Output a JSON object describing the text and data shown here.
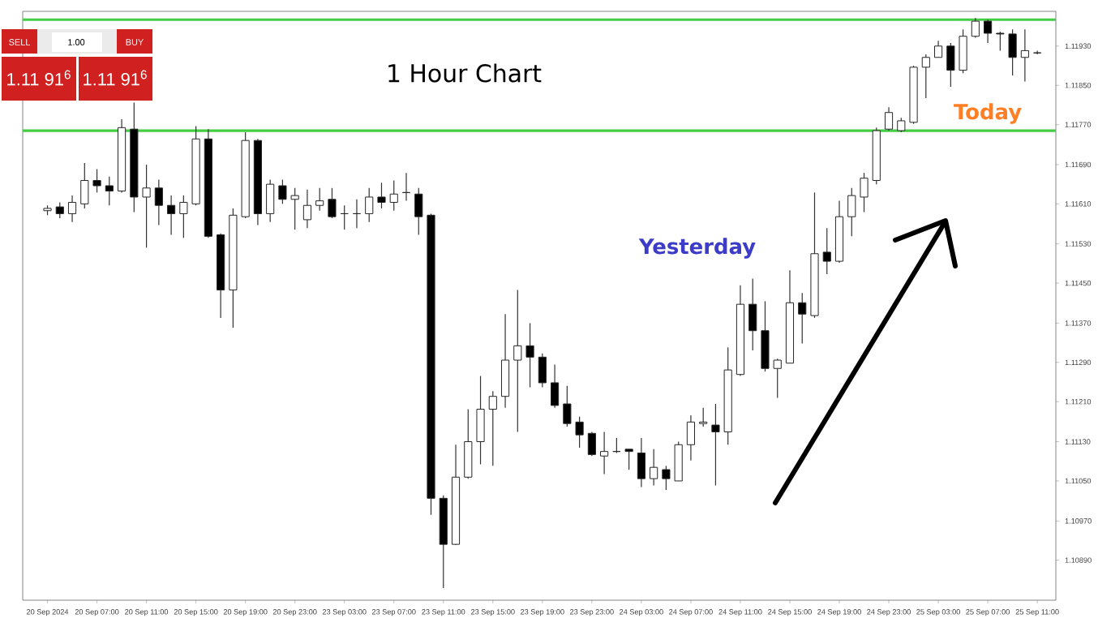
{
  "chart_data": {
    "type": "candlestick",
    "title": "1 Hour Chart",
    "annotations": [
      "Yesterday",
      "Today",
      "SELL",
      "1.00",
      "BUY",
      "1.11 91$^{6}$",
      "1.11 91$^{6}$"
    ],
    "categories": [
      "20 Sep 2024",
      null,
      null,
      null,
      "20 Sep 07:00",
      null,
      null,
      null,
      "20 Sep 11:00",
      null,
      null,
      null,
      "20 Sep 15:00",
      null,
      null,
      null,
      "20 Sep 19:00",
      null,
      null,
      null,
      "20 Sep 23:00",
      null,
      null,
      null,
      "23 Sep 03:00",
      null,
      null,
      null,
      "23 Sep 07:00",
      null,
      null,
      null,
      "23 Sep 11:00",
      null,
      null,
      null,
      "23 Sep 15:00",
      null,
      null,
      null,
      "23 Sep 19:00",
      null,
      null,
      null,
      "23 Sep 23:00",
      null,
      null,
      null,
      "24 Sep 03:00",
      null,
      null,
      null,
      "24 Sep 07:00",
      null,
      null,
      null,
      "24 Sep 11:00",
      null,
      null,
      null,
      "24 Sep 15:00",
      null,
      null,
      null,
      "24 Sep 19:00",
      null,
      null,
      null,
      "24 Sep 23:00",
      null,
      null,
      null,
      "25 Sep 03:00",
      null,
      null,
      null,
      "25 Sep 07:00",
      null,
      null,
      null,
      "25 Sep 11:00"
    ],
    "ohlc": [
      [
        1.11597,
        1.11607,
        1.11588,
        1.11601
      ],
      [
        1.11604,
        1.11614,
        1.11581,
        1.11591
      ],
      [
        1.11591,
        1.11627,
        1.11574,
        1.11614
      ],
      [
        1.11611,
        1.11693,
        1.11601,
        1.11657
      ],
      [
        1.11657,
        1.1168,
        1.11634,
        1.11647
      ],
      [
        1.11647,
        1.11666,
        1.11607,
        1.11637
      ],
      [
        1.11637,
        1.11782,
        1.11634,
        1.11765
      ],
      [
        1.11762,
        1.11815,
        1.11594,
        1.11624
      ],
      [
        1.11624,
        1.11689,
        1.11522,
        1.11643
      ],
      [
        1.11643,
        1.1166,
        1.11568,
        1.11607
      ],
      [
        1.11607,
        1.11627,
        1.11548,
        1.11591
      ],
      [
        1.11591,
        1.11627,
        1.11541,
        1.11614
      ],
      [
        1.11611,
        1.11768,
        1.11607,
        1.11742
      ],
      [
        1.11742,
        1.11762,
        1.11541,
        1.11545
      ],
      [
        1.11548,
        1.11551,
        1.1138,
        1.11436
      ],
      [
        1.11436,
        1.11601,
        1.1136,
        1.11588
      ],
      [
        1.11584,
        1.11755,
        1.11581,
        1.11739
      ],
      [
        1.11739,
        1.11742,
        1.11568,
        1.11591
      ],
      [
        1.11591,
        1.1166,
        1.11574,
        1.1165
      ],
      [
        1.11647,
        1.1166,
        1.11611,
        1.1162
      ],
      [
        1.1162,
        1.11643,
        1.11558,
        1.11627
      ],
      [
        1.11578,
        1.1164,
        1.11561,
        1.11607
      ],
      [
        1.11607,
        1.11643,
        1.11597,
        1.11617
      ],
      [
        1.1162,
        1.11643,
        1.11581,
        1.11584
      ],
      [
        1.11591,
        1.11607,
        1.11558,
        1.11591
      ],
      [
        1.11591,
        1.1162,
        1.11561,
        1.11591
      ],
      [
        1.11591,
        1.11643,
        1.11574,
        1.11624
      ],
      [
        1.11624,
        1.11653,
        1.11601,
        1.11614
      ],
      [
        1.11614,
        1.11657,
        1.11597,
        1.1163
      ],
      [
        1.11634,
        1.11673,
        1.11617,
        1.11634
      ],
      [
        1.1163,
        1.11643,
        1.11548,
        1.11584
      ],
      [
        1.11588,
        1.11591,
        1.10982,
        1.11015
      ],
      [
        1.11015,
        1.11022,
        1.10834,
        1.10923
      ],
      [
        1.10923,
        1.11124,
        1.1092,
        1.11058
      ],
      [
        1.11058,
        1.11196,
        1.11055,
        1.1113
      ],
      [
        1.1113,
        1.11262,
        1.11084,
        1.11196
      ],
      [
        1.11196,
        1.11232,
        1.11081,
        1.11222
      ],
      [
        1.11222,
        1.11387,
        1.11199,
        1.11295
      ],
      [
        1.11295,
        1.11436,
        1.1115,
        1.11324
      ],
      [
        1.11324,
        1.1137,
        1.11239,
        1.11301
      ],
      [
        1.11301,
        1.11308,
        1.11239,
        1.11249
      ],
      [
        1.11249,
        1.11285,
        1.11199,
        1.11203
      ],
      [
        1.11206,
        1.11242,
        1.1116,
        1.11166
      ],
      [
        1.1117,
        1.1118,
        1.11117,
        1.11143
      ],
      [
        1.11147,
        1.1115,
        1.11101,
        1.11104
      ],
      [
        1.11101,
        1.1115,
        1.11064,
        1.1111
      ],
      [
        1.1111,
        1.11137,
        1.11107,
        1.1111
      ],
      [
        1.11114,
        1.11114,
        1.11074,
        1.1111
      ],
      [
        1.11107,
        1.11137,
        1.11038,
        1.11055
      ],
      [
        1.11055,
        1.11114,
        1.11041,
        1.11078
      ],
      [
        1.11074,
        1.11081,
        1.11032,
        1.11055
      ],
      [
        1.11051,
        1.1113,
        1.11051,
        1.11124
      ],
      [
        1.11124,
        1.11183,
        1.11091,
        1.1117
      ],
      [
        1.11166,
        1.11199,
        1.1116,
        1.1117
      ],
      [
        1.11163,
        1.11206,
        1.11041,
        1.1115
      ],
      [
        1.1115,
        1.11321,
        1.11124,
        1.11275
      ],
      [
        1.11265,
        1.11446,
        1.11262,
        1.11407
      ],
      [
        1.11407,
        1.11459,
        1.11314,
        1.11354
      ],
      [
        1.11354,
        1.11413,
        1.11272,
        1.11278
      ],
      [
        1.11278,
        1.11298,
        1.11219,
        1.11295
      ],
      [
        1.11288,
        1.11476,
        1.11288,
        1.1141
      ],
      [
        1.1141,
        1.1143,
        1.11328,
        1.11387
      ],
      [
        1.11384,
        1.11634,
        1.1138,
        1.11509
      ],
      [
        1.11512,
        1.11561,
        1.11469,
        1.11495
      ],
      [
        1.11495,
        1.11617,
        1.11492,
        1.11584
      ],
      [
        1.11584,
        1.11643,
        1.11545,
        1.11627
      ],
      [
        1.11624,
        1.11673,
        1.11594,
        1.11663
      ],
      [
        1.11657,
        1.11765,
        1.1165,
        1.11759
      ],
      [
        1.11762,
        1.11805,
        1.11759,
        1.11795
      ],
      [
        1.11759,
        1.11785,
        1.11755,
        1.11778
      ],
      [
        1.11775,
        1.1189,
        1.11772,
        1.11887
      ],
      [
        1.11887,
        1.11913,
        1.11824,
        1.11907
      ],
      [
        1.11907,
        1.1194,
        1.11907,
        1.1193
      ],
      [
        1.1193,
        1.11936,
        1.11847,
        1.1188
      ],
      [
        1.1188,
        1.11963,
        1.11874,
        1.11949
      ],
      [
        1.11949,
        1.11986,
        1.11946,
        1.11979
      ],
      [
        1.11979,
        1.11982,
        1.11936,
        1.11956
      ],
      [
        1.11956,
        1.11959,
        1.1192,
        1.11953
      ],
      [
        1.11953,
        1.11963,
        1.1187,
        1.11907
      ],
      [
        1.11907,
        1.11963,
        1.11857,
        1.1192
      ],
      [
        1.11916,
        1.1192,
        1.11913,
        1.11916
      ]
    ],
    "ylim": [
      1.1081,
      1.12
    ],
    "yticks": [
      {
        "value": 1.1089,
        "label": "1.10890"
      },
      {
        "value": 1.1097,
        "label": "1.10970"
      },
      {
        "value": 1.1105,
        "label": "1.11050"
      },
      {
        "value": 1.1113,
        "label": "1.11130"
      },
      {
        "value": 1.1121,
        "label": "1.11210"
      },
      {
        "value": 1.1129,
        "label": "1.11290"
      },
      {
        "value": 1.1137,
        "label": "1.11370"
      },
      {
        "value": 1.1145,
        "label": "1.11450"
      },
      {
        "value": 1.1153,
        "label": "1.11530"
      },
      {
        "value": 1.1161,
        "label": "1.11610"
      },
      {
        "value": 1.1169,
        "label": "1.11690"
      },
      {
        "value": 1.1177,
        "label": "1.11770"
      },
      {
        "value": 1.1185,
        "label": "1.11850"
      },
      {
        "value": 1.1193,
        "label": "1.11930"
      }
    ],
    "ref_lines": [
      {
        "axis": "y",
        "value": 1.11982,
        "color": "#44cc44"
      },
      {
        "axis": "y",
        "value": 1.11759,
        "color": "#44cc44"
      }
    ]
  }
}
